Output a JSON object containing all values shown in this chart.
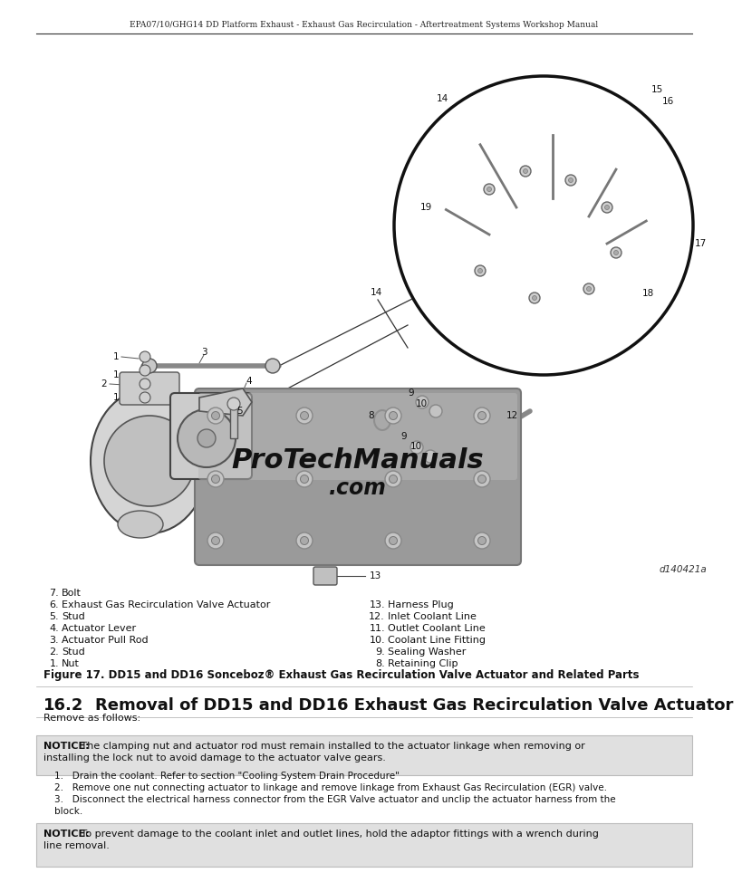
{
  "page_header": "EPA07/10/GHG14 DD Platform Exhaust - Exhaust Gas Recirculation - Aftertreatment Systems Workshop Manual",
  "figure_id": "d140421a",
  "figure_caption": "Figure 17. DD15 and DD16 Sonceboz® Exhaust Gas Recirculation Valve Actuator and Related Parts",
  "section_heading": "16.2    Removal of DD15 and DD16 Exhaust Gas Recirculation Valve Actuator",
  "remove_text": "Remove as follows:",
  "notice1_bold": "NOTICE:",
  "notice1_rest": " The clamping nut and actuator rod must remain installed to the actuator linkage when removing or\ninstalling the lock nut to avoid damage to the actuator valve gears.",
  "step1": "Drain the coolant. Refer to section \"Cooling System Drain Procedure\"",
  "step2": "Remove one nut connecting actuator to linkage and remove linkage from Exhaust Gas Recirculation (EGR) valve.",
  "step3a": "Disconnect the electrical harness connector from the EGR Valve actuator and unclip the actuator harness from the",
  "step3b": "block.",
  "notice2_bold": "NOTICE:",
  "notice2_rest": " To prevent damage to the coolant inlet and outlet lines, hold the adaptor fittings with a wrench during\nline removal.",
  "parts_left": [
    [
      "1.",
      "Nut"
    ],
    [
      "2.",
      "Stud"
    ],
    [
      "3.",
      "Actuator Pull Rod"
    ],
    [
      "4.",
      "Actuator Lever"
    ],
    [
      "5.",
      "Stud"
    ],
    [
      "6.",
      "Exhaust Gas Recirculation Valve Actuator"
    ],
    [
      "7.",
      "Bolt"
    ]
  ],
  "parts_right": [
    [
      "8.",
      "Retaining Clip"
    ],
    [
      "9.",
      "Sealing Washer"
    ],
    [
      "10.",
      "Coolant Line Fitting"
    ],
    [
      "11.",
      "Outlet Coolant Line"
    ],
    [
      "12.",
      "Inlet Coolant Line"
    ],
    [
      "13.",
      "Harness Plug"
    ]
  ],
  "bg_color": "#ffffff",
  "notice_bg": "#e0e0e0",
  "text_color": "#111111"
}
